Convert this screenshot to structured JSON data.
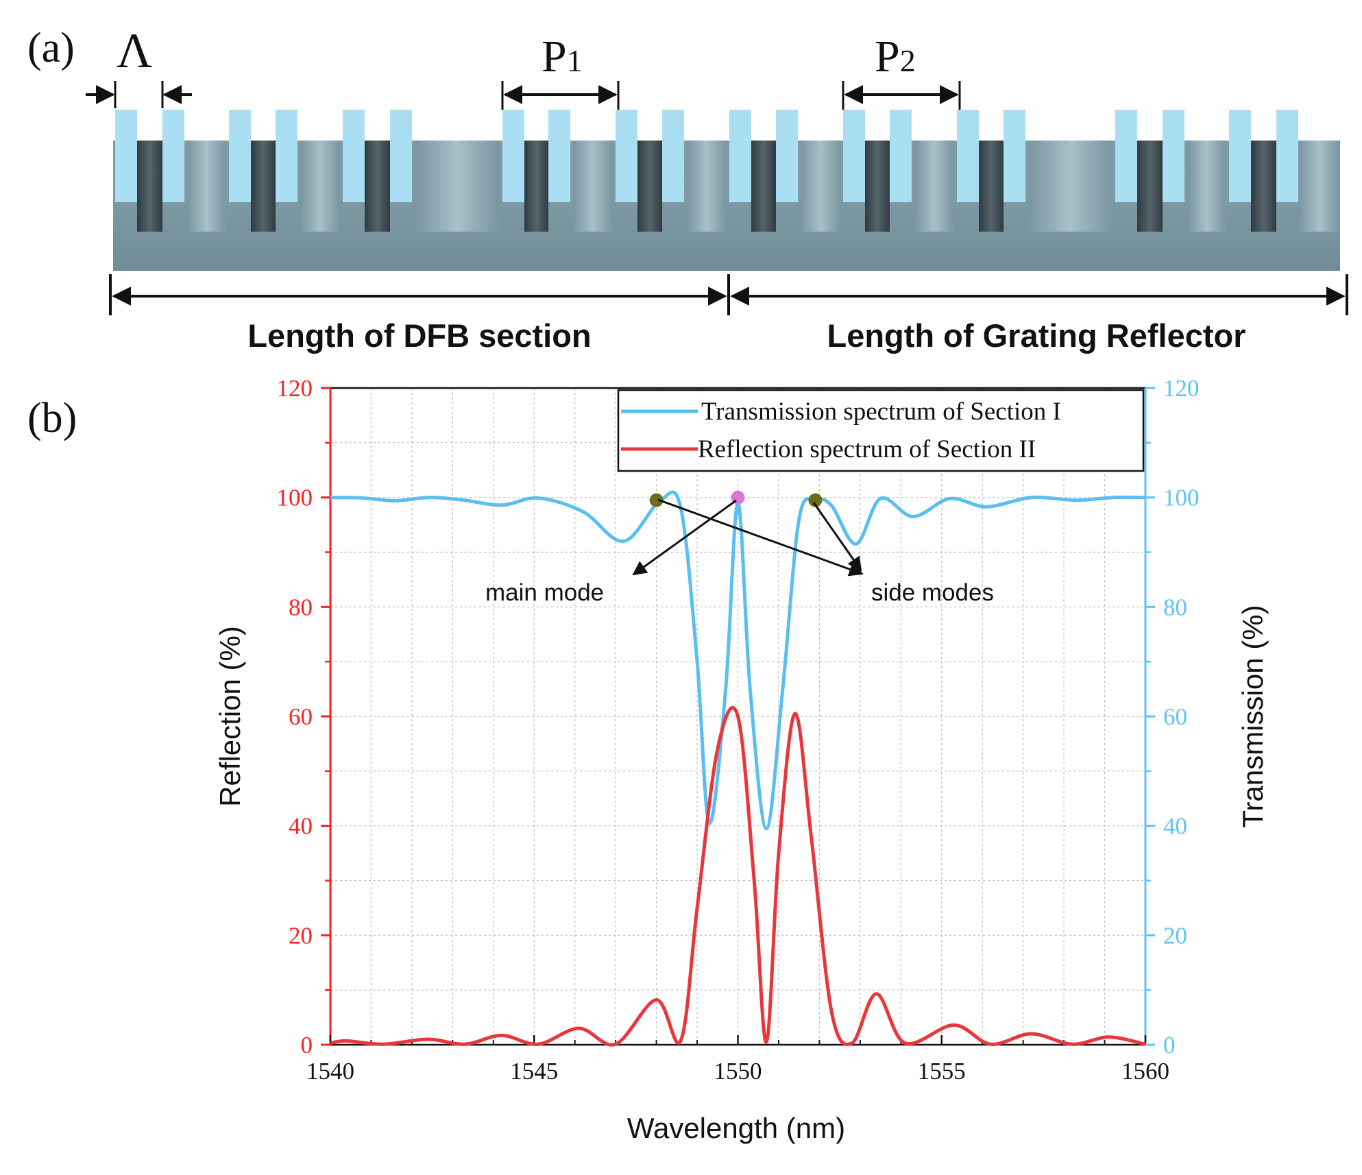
{
  "panel_a": {
    "label": "(a)",
    "lambda_symbol": "Λ",
    "p1_label": "P",
    "p1_sub": "1",
    "p2_label": "P",
    "p2_sub": "2",
    "dfb_section_label": "Length of DFB section",
    "reflector_label": "Length of Grating Reflector",
    "colors": {
      "tooth": "#a9def3",
      "slab": "#6e8d98",
      "gap_dark": "#3a464d",
      "gap_mid": "#7d9aa5"
    }
  },
  "panel_b": {
    "label": "(b)",
    "annotations": {
      "main_mode": "main mode",
      "side_modes": "side modes"
    }
  },
  "chart_data": {
    "type": "line",
    "xlabel": "Wavelength (nm)",
    "ylabel_left": "Reflection (%)",
    "ylabel_right": "Transmission (%)",
    "xlim": [
      1540,
      1560
    ],
    "ylim": [
      0,
      120
    ],
    "xticks": [
      "1540",
      "1545",
      "1550",
      "1555",
      "1560"
    ],
    "yticks": [
      "0",
      "20",
      "40",
      "60",
      "80",
      "100",
      "120"
    ],
    "grid": true,
    "legend_position": "top-right",
    "colors": {
      "left_axis": "#ff1f1f",
      "right_axis": "#5ec3f2"
    },
    "series": [
      {
        "name": "Transmission spectrum of Section I",
        "axis": "right",
        "color": "#5abff0",
        "x": [
          1540,
          1540.8,
          1541.6,
          1542.4,
          1543.2,
          1544.2,
          1545.1,
          1546.2,
          1547.2,
          1548.1,
          1548.6,
          1549.0,
          1549.3,
          1549.7,
          1550.0,
          1550.3,
          1550.7,
          1551.1,
          1551.5,
          1551.9,
          1552.3,
          1552.9,
          1553.5,
          1554.3,
          1555.2,
          1556.1,
          1557.2,
          1558.3,
          1559.2,
          1560
        ],
        "y": [
          100,
          99.9,
          99.4,
          100,
          99.6,
          98.6,
          99.9,
          97.4,
          92.0,
          99.5,
          98.0,
          70.0,
          40.5,
          65.0,
          99.0,
          65.0,
          39.5,
          65.0,
          96.0,
          99.5,
          98.5,
          91.5,
          99.8,
          96.5,
          99.8,
          98.3,
          100,
          99.5,
          100,
          100
        ]
      },
      {
        "name": "Reflection spectrum of Section II",
        "axis": "left",
        "color": "#e8373b",
        "x": [
          1540,
          1540.4,
          1541.3,
          1542.4,
          1543.3,
          1544.2,
          1545.1,
          1546.1,
          1547.0,
          1548.0,
          1548.6,
          1549.0,
          1549.5,
          1550.0,
          1550.4,
          1550.7,
          1551.0,
          1551.4,
          1551.8,
          1552.3,
          1552.8,
          1553.4,
          1554.1,
          1555.3,
          1556.2,
          1557.2,
          1558.2,
          1559.1,
          1560
        ],
        "y": [
          0.3,
          0.7,
          0.1,
          1.0,
          0.1,
          1.7,
          0.1,
          3.0,
          0.1,
          8.2,
          0.8,
          25,
          54,
          60,
          30,
          0.5,
          35,
          60.5,
          38,
          6,
          0.3,
          9.3,
          0.3,
          3.6,
          0.1,
          2.0,
          0.1,
          1.4,
          0.1
        ]
      }
    ],
    "markers": [
      {
        "role": "main mode",
        "x": 1550.0,
        "y": 100,
        "color": "#d978d4"
      },
      {
        "role": "side mode",
        "x": 1548.0,
        "y": 99.5,
        "color": "#6b6e14"
      },
      {
        "role": "side mode",
        "x": 1551.9,
        "y": 99.5,
        "color": "#6b6e14"
      }
    ]
  }
}
